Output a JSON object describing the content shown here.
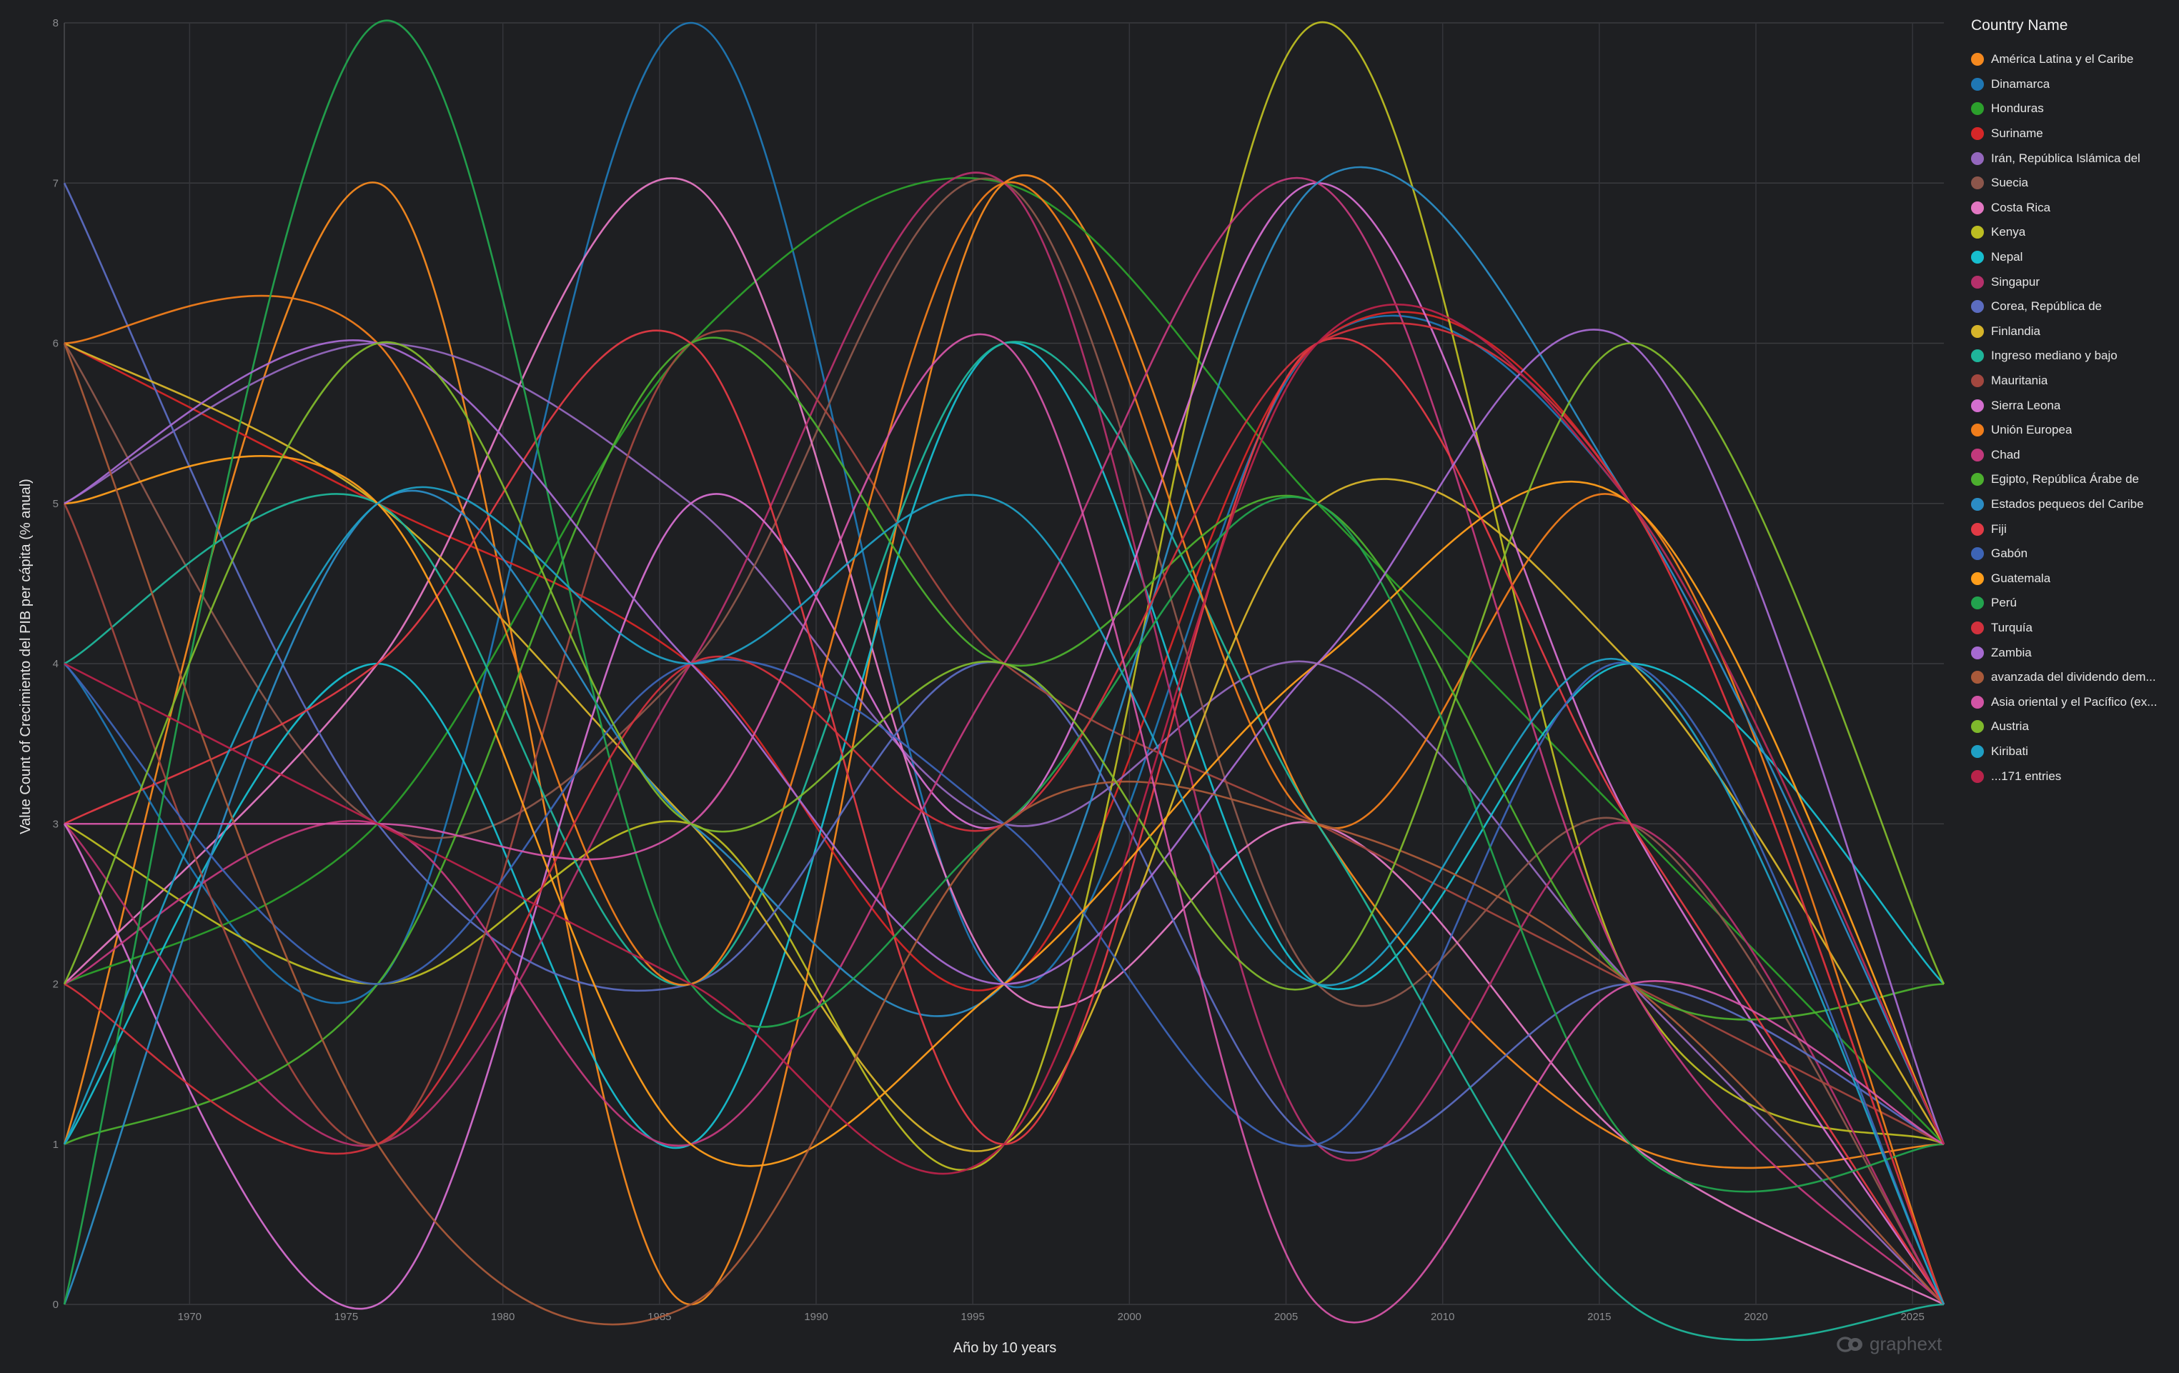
{
  "chart_data": {
    "type": "line",
    "curve": "smooth-cardinal",
    "xlabel": "Año by 10 years",
    "ylabel": "Value Count of Crecimiento del PIB per cápita (% anual)",
    "xlim": [
      1966,
      2026
    ],
    "ylim": [
      0,
      8
    ],
    "x": [
      1966,
      1976,
      1986,
      1996,
      2006,
      2016,
      2026
    ],
    "x_ticks": [
      1970,
      1975,
      1980,
      1985,
      1990,
      1995,
      2000,
      2005,
      2010,
      2015,
      2020,
      2025
    ],
    "y_ticks": [
      0,
      1,
      2,
      3,
      4,
      5,
      6,
      7,
      8
    ],
    "grid": true,
    "legend_position": "right",
    "legend_title": "Country Name",
    "series": [
      {
        "name": "América Latina y el Caribe",
        "color": "#f5891f",
        "values": [
          1,
          7,
          0,
          7,
          3,
          1,
          1
        ]
      },
      {
        "name": "Dinamarca",
        "color": "#1f77b4",
        "values": [
          4,
          2,
          8,
          2,
          6,
          5,
          1
        ]
      },
      {
        "name": "Honduras",
        "color": "#2ca02c",
        "values": [
          2,
          3,
          6,
          7,
          5,
          3,
          1
        ]
      },
      {
        "name": "Suriname",
        "color": "#d62728",
        "values": [
          6,
          5,
          4,
          2,
          6,
          5,
          0
        ]
      },
      {
        "name": "Irán, República Islámica del",
        "color": "#9467bd",
        "values": [
          5,
          6,
          5,
          3,
          4,
          2,
          0
        ]
      },
      {
        "name": "Suecia",
        "color": "#8c564b",
        "values": [
          6,
          3,
          4,
          7,
          2,
          3,
          0
        ]
      },
      {
        "name": "Costa Rica",
        "color": "#e377c2",
        "values": [
          2,
          4,
          7,
          2,
          3,
          1,
          0
        ]
      },
      {
        "name": "Kenya",
        "color": "#bcbd22",
        "values": [
          3,
          2,
          3,
          1,
          8,
          2,
          1
        ]
      },
      {
        "name": "Nepal",
        "color": "#17becf",
        "values": [
          1,
          4,
          1,
          6,
          2,
          4,
          2
        ]
      },
      {
        "name": "Singapur",
        "color": "#b5306b",
        "values": [
          3,
          1,
          4,
          7,
          1,
          3,
          0
        ]
      },
      {
        "name": "Corea, República de",
        "color": "#5b6cc0",
        "values": [
          7,
          3,
          2,
          4,
          1,
          2,
          1
        ]
      },
      {
        "name": "Finlandia",
        "color": "#d6b42a",
        "values": [
          6,
          5,
          3,
          1,
          5,
          4,
          1
        ]
      },
      {
        "name": "Ingreso mediano y bajo",
        "color": "#1fb59a",
        "values": [
          4,
          5,
          2,
          6,
          3,
          0,
          0
        ]
      },
      {
        "name": "Mauritania",
        "color": "#a2473f",
        "values": [
          5,
          1,
          6,
          4,
          3,
          2,
          1
        ]
      },
      {
        "name": "Sierra Leona",
        "color": "#d46ecf",
        "values": [
          3,
          0,
          5,
          3,
          7,
          3,
          0
        ]
      },
      {
        "name": "Unión Europea",
        "color": "#f07d1b",
        "values": [
          6,
          6,
          2,
          7,
          3,
          5,
          0
        ]
      },
      {
        "name": "Chad",
        "color": "#c2397c",
        "values": [
          2,
          3,
          1,
          4,
          7,
          2,
          0
        ]
      },
      {
        "name": "Egipto, República Árabe de",
        "color": "#4caf2e",
        "values": [
          1,
          2,
          6,
          4,
          5,
          2,
          2
        ]
      },
      {
        "name": "Estados pequeos del Caribe",
        "color": "#2b8cc4",
        "values": [
          0,
          5,
          3,
          2,
          7,
          5,
          1
        ]
      },
      {
        "name": "Fiji",
        "color": "#e23a45",
        "values": [
          3,
          4,
          6,
          1,
          6,
          3,
          0
        ]
      },
      {
        "name": "Gabón",
        "color": "#3d64b6",
        "values": [
          4,
          2,
          4,
          3,
          1,
          4,
          0
        ]
      },
      {
        "name": "Guatemala",
        "color": "#ff9e1b",
        "values": [
          5,
          5,
          1,
          2,
          4,
          5,
          1
        ]
      },
      {
        "name": "Perú",
        "color": "#22a34e",
        "values": [
          0,
          8,
          2,
          3,
          5,
          1,
          1
        ]
      },
      {
        "name": "Turquía",
        "color": "#d2313d",
        "values": [
          2,
          1,
          4,
          3,
          6,
          5,
          0
        ]
      },
      {
        "name": "Zambia",
        "color": "#a66ad1",
        "values": [
          5,
          6,
          4,
          2,
          4,
          6,
          1
        ]
      },
      {
        "name": "avanzada del dividendo dem...",
        "color": "#a95a3a",
        "values": [
          6,
          1,
          0,
          3,
          3,
          2,
          0
        ]
      },
      {
        "name": "Asia oriental y el Pacífico (ex...",
        "color": "#d254a5",
        "values": [
          3,
          3,
          3,
          6,
          0,
          2,
          1
        ]
      },
      {
        "name": "Austria",
        "color": "#7fb82c",
        "values": [
          2,
          6,
          3,
          4,
          2,
          6,
          2
        ]
      },
      {
        "name": "Kiribati",
        "color": "#1f9fc4",
        "values": [
          1,
          5,
          4,
          5,
          2,
          4,
          0
        ]
      },
      {
        "name": "...171 entries",
        "color": "#b8234a",
        "values": [
          4,
          3,
          2,
          1,
          6,
          5,
          1
        ]
      }
    ]
  },
  "brand": "graphext"
}
